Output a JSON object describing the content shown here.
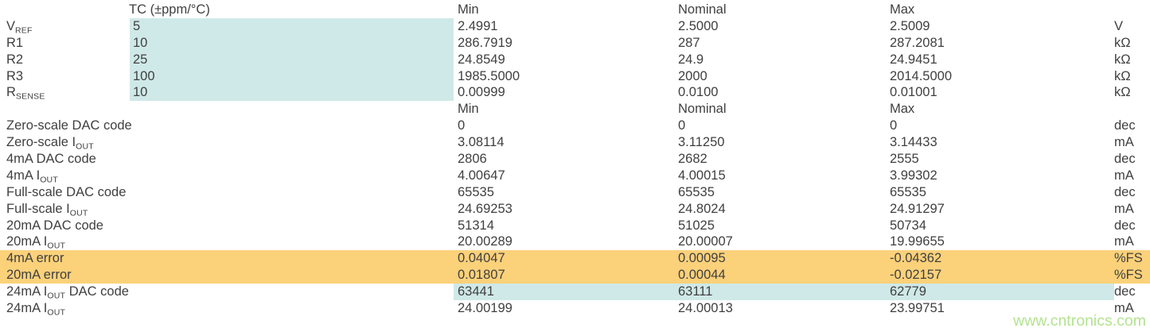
{
  "colors": {
    "text": "#404040",
    "background": "#ffffff",
    "highlight_blue": "#cfe9e8",
    "highlight_orange": "#fbd17a",
    "watermark_green": "#b3e38f"
  },
  "watermark": "www.cntronics.com",
  "table": {
    "header1": {
      "tc": "TC (±ppm/°C)",
      "min": "Min",
      "nominal": "Nominal",
      "max": "Max"
    },
    "section1": {
      "rows": [
        {
          "label_pre": "V",
          "label_sub": "REF",
          "label_post": "",
          "tc": "5",
          "min": "2.4991",
          "nominal": "2.5000",
          "max": "2.5009",
          "unit": "V",
          "highlight": "tc-blue"
        },
        {
          "label_pre": "R1",
          "label_sub": "",
          "label_post": "",
          "tc": "10",
          "min": "286.7919",
          "nominal": "287",
          "max": "287.2081",
          "unit": "kΩ",
          "highlight": "tc-blue"
        },
        {
          "label_pre": "R2",
          "label_sub": "",
          "label_post": "",
          "tc": "25",
          "min": "24.8549",
          "nominal": "24.9",
          "max": "24.9451",
          "unit": "kΩ",
          "highlight": "tc-blue"
        },
        {
          "label_pre": "R3",
          "label_sub": "",
          "label_post": "",
          "tc": "100",
          "min": "1985.5000",
          "nominal": "2000",
          "max": "2014.5000",
          "unit": "kΩ",
          "highlight": "tc-blue"
        },
        {
          "label_pre": "R",
          "label_sub": "SENSE",
          "label_post": "",
          "tc": "10",
          "min": "0.00999",
          "nominal": "0.0100",
          "max": "0.01001",
          "unit": "kΩ",
          "highlight": "tc-blue"
        }
      ]
    },
    "header2": {
      "min": "Min",
      "nominal": "Nominal",
      "max": "Max"
    },
    "section2": {
      "rows": [
        {
          "label_pre": "Zero-scale DAC code",
          "label_sub": "",
          "label_post": "",
          "min": "0",
          "nominal": "0",
          "max": "0",
          "unit": "dec",
          "highlight": "none"
        },
        {
          "label_pre": "Zero-scale I",
          "label_sub": "OUT",
          "label_post": "",
          "min": "3.08114",
          "nominal": "3.11250",
          "max": "3.14433",
          "unit": "mA",
          "highlight": "none"
        },
        {
          "label_pre": "4mA DAC code",
          "label_sub": "",
          "label_post": "",
          "min": "2806",
          "nominal": "2682",
          "max": "2555",
          "unit": "dec",
          "highlight": "none"
        },
        {
          "label_pre": "4mA I",
          "label_sub": "OUT",
          "label_post": "",
          "min": "4.00647",
          "nominal": "4.00015",
          "max": "3.99302",
          "unit": "mA",
          "highlight": "none"
        },
        {
          "label_pre": "Full-scale DAC code",
          "label_sub": "",
          "label_post": "",
          "min": "65535",
          "nominal": "65535",
          "max": "65535",
          "unit": "dec",
          "highlight": "none"
        },
        {
          "label_pre": "Full-scale I",
          "label_sub": "OUT",
          "label_post": "",
          "min": "24.69253",
          "nominal": "24.8024",
          "max": "24.91297",
          "unit": "mA",
          "highlight": "none"
        },
        {
          "label_pre": "20mA DAC code",
          "label_sub": "",
          "label_post": "",
          "min": "51314",
          "nominal": "51025",
          "max": "50734",
          "unit": "dec",
          "highlight": "none"
        },
        {
          "label_pre": "20mA I",
          "label_sub": "OUT",
          "label_post": "",
          "min": "20.00289",
          "nominal": "20.00007",
          "max": "19.99655",
          "unit": "mA",
          "highlight": "none"
        },
        {
          "label_pre": "4mA error",
          "label_sub": "",
          "label_post": "",
          "min": "0.04047",
          "nominal": "0.00095",
          "max": "-0.04362",
          "unit": "%FS",
          "highlight": "orange-full-row"
        },
        {
          "label_pre": "20mA error",
          "label_sub": "",
          "label_post": "",
          "min": "0.01807",
          "nominal": "0.00044",
          "max": "-0.02157",
          "unit": "%FS",
          "highlight": "orange-full-row"
        },
        {
          "label_pre": "24mA I",
          "label_sub": "OUT",
          "label_post": " DAC code",
          "min": "63441",
          "nominal": "63111",
          "max": "62779",
          "unit": "dec",
          "highlight": "blue-values"
        },
        {
          "label_pre": "24mA I",
          "label_sub": "OUT",
          "label_post": "",
          "min": "24.00199",
          "nominal": "24.00013",
          "max": "23.99751",
          "unit": "mA",
          "highlight": "none"
        }
      ]
    }
  }
}
